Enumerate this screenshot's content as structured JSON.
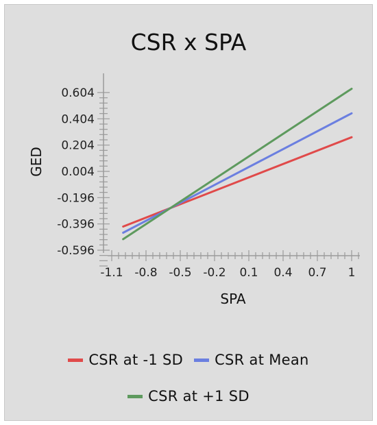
{
  "chart_data": {
    "type": "line",
    "title": "CSR x SPA",
    "xlabel": "SPA",
    "ylabel": "GED",
    "x": [
      -1,
      1
    ],
    "xlim": [
      -1.1,
      1
    ],
    "ylim": [
      -0.596,
      0.604
    ],
    "x_ticks": [
      -1.1,
      -0.8,
      -0.5,
      -0.2,
      0.1,
      0.4,
      0.7,
      1
    ],
    "y_ticks": [
      0.604,
      0.404,
      0.204,
      0.004,
      -0.196,
      -0.396,
      -0.596
    ],
    "x_tick_labels": [
      "-1.1",
      "-0.8",
      "-0.5",
      "-0.2",
      "0.1",
      "0.4",
      "0.7",
      "1"
    ],
    "y_tick_labels": [
      "0.604",
      "0.404",
      "0.204",
      "0.004",
      "-0.196",
      "-0.396",
      "-0.596"
    ],
    "grid": false,
    "legend": "bottom",
    "series": [
      {
        "name": "CSR at -1 SD",
        "color": "#e04a4a",
        "values": [
          -0.416,
          0.264
        ]
      },
      {
        "name": "CSR at Mean",
        "color": "#6b7fe0",
        "values": [
          -0.463,
          0.446
        ]
      },
      {
        "name": "CSR at +1 SD",
        "color": "#5e9a5e",
        "values": [
          -0.512,
          0.633
        ]
      }
    ]
  }
}
